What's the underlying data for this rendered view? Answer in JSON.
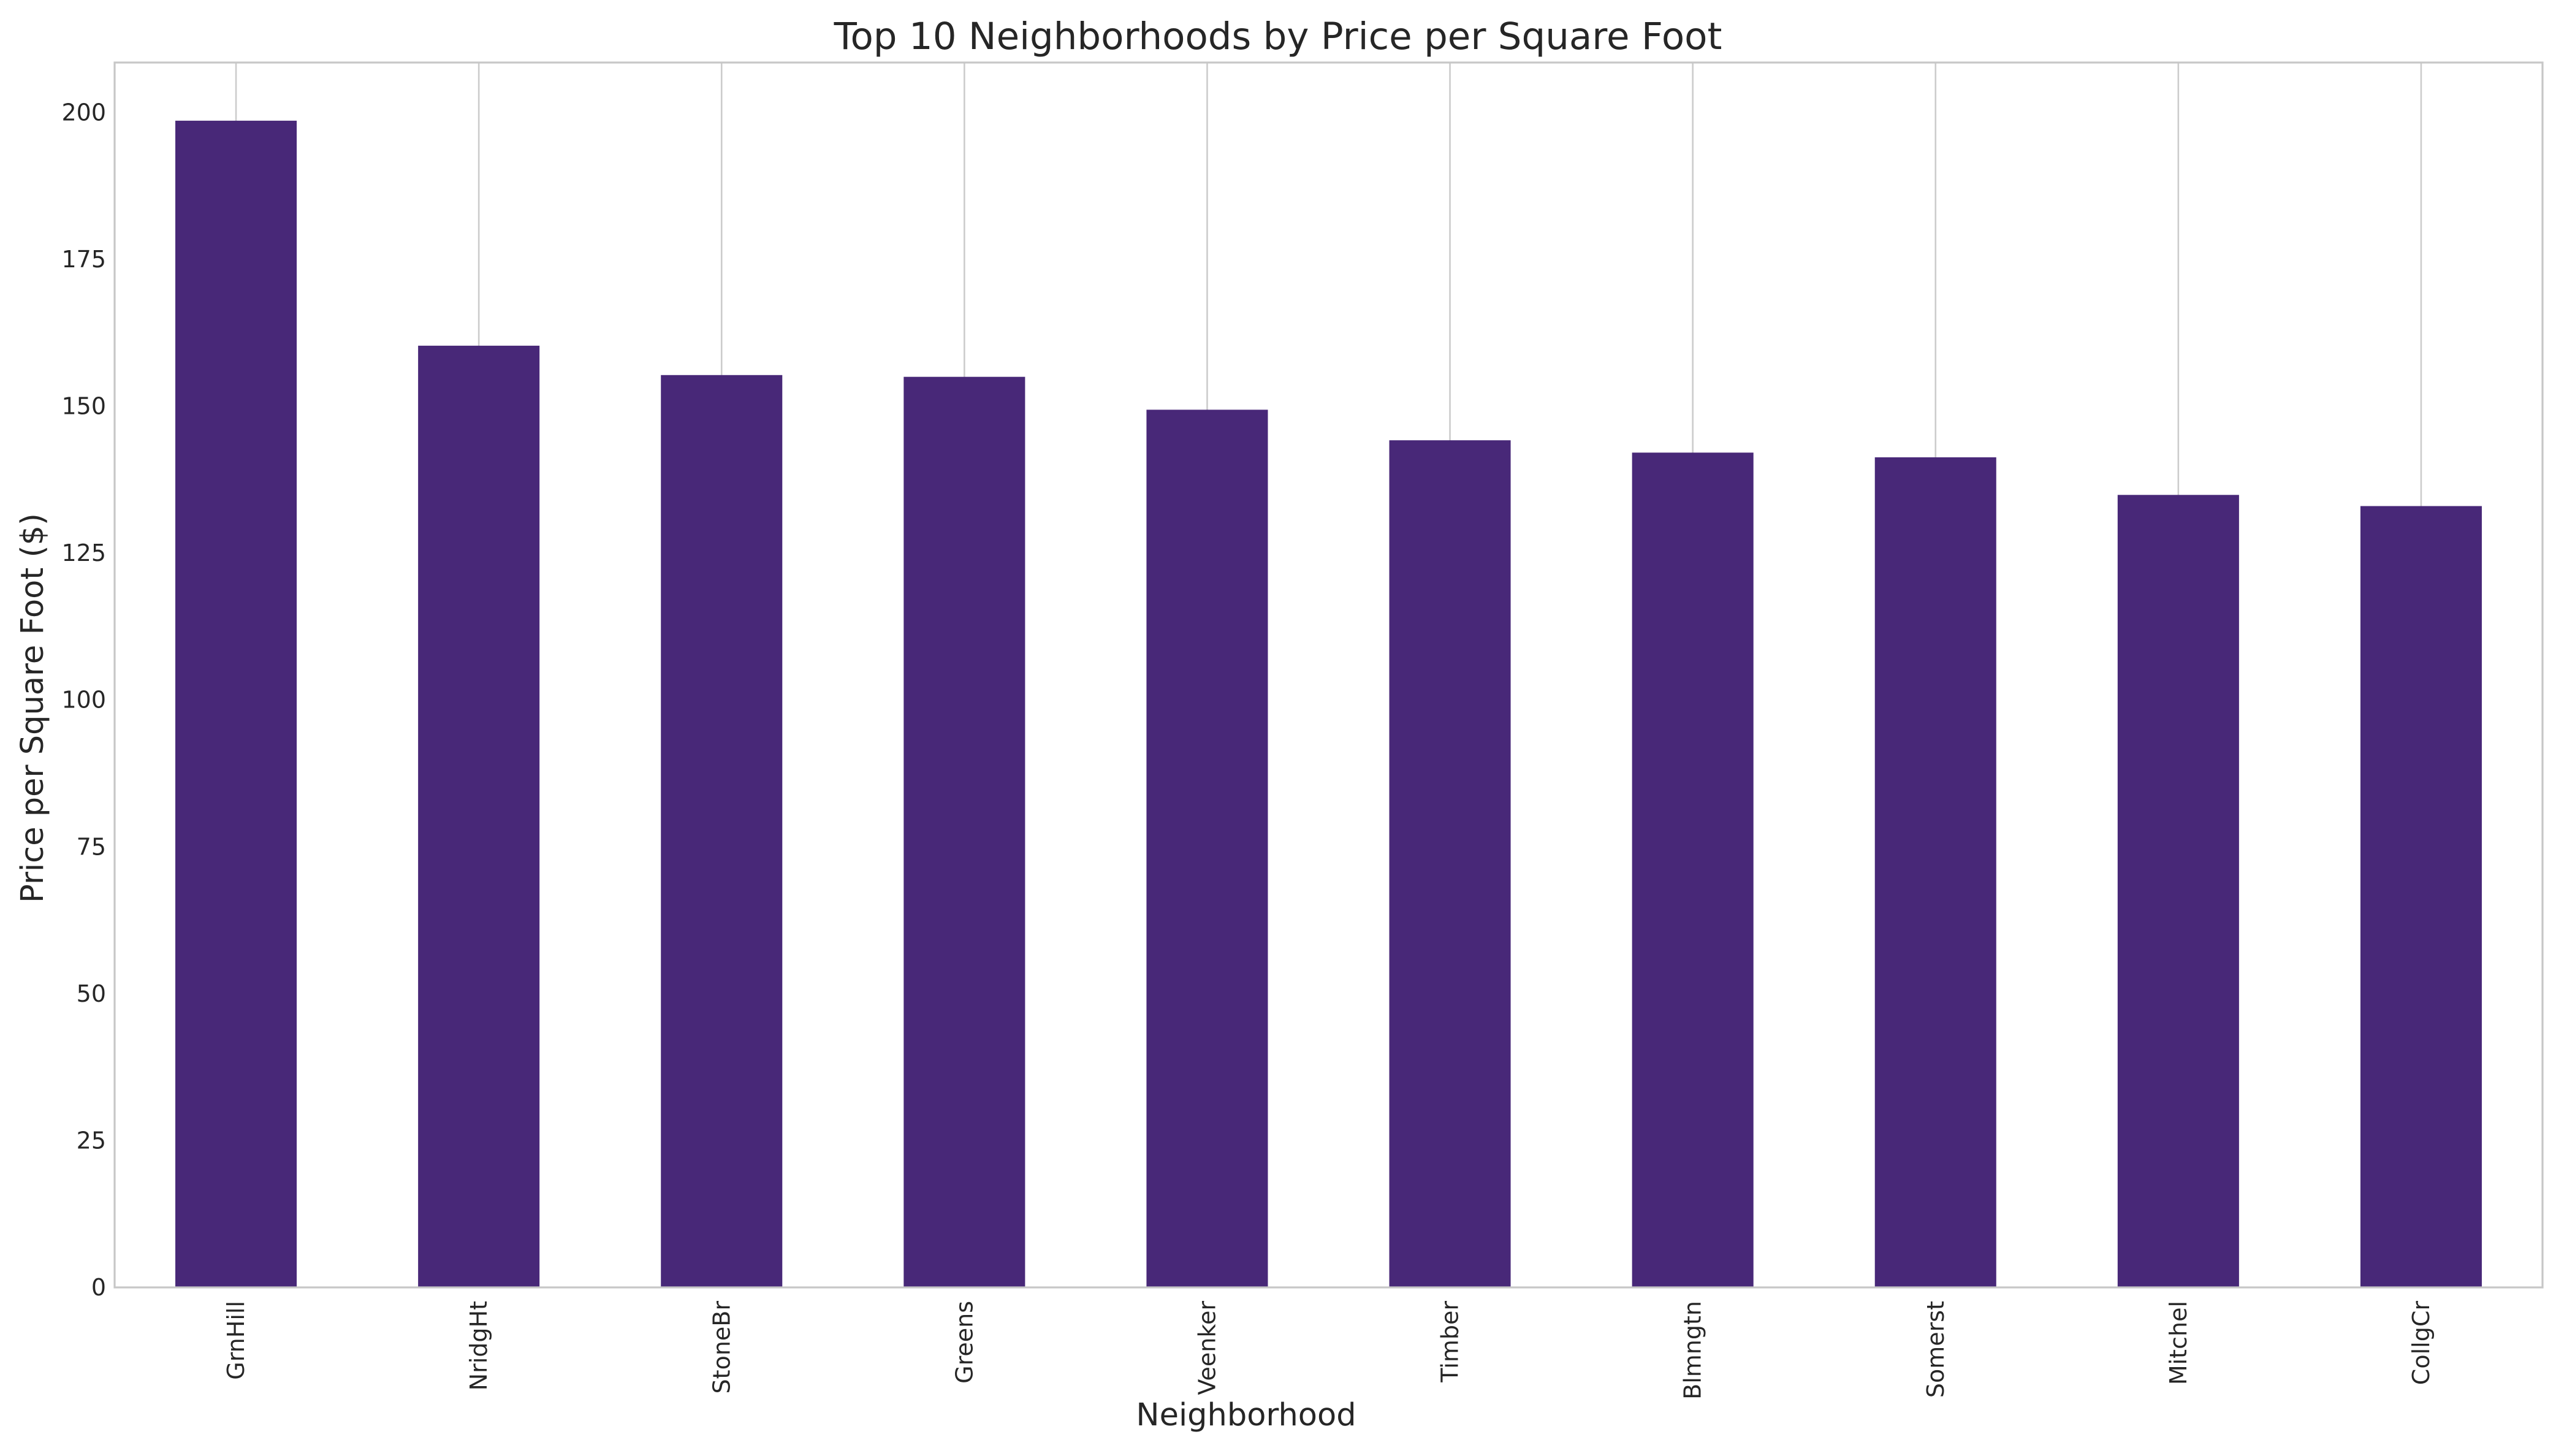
{
  "chart_data": {
    "type": "bar",
    "title": "Top 10 Neighborhoods by Price per Square Foot",
    "xlabel": "Neighborhood",
    "ylabel": "Price per Square Foot ($)",
    "categories": [
      "GrnHill",
      "NridgHt",
      "StoneBr",
      "Greens",
      "Veenker",
      "Timber",
      "Blmngtn",
      "Somerst",
      "Mitchel",
      "CollgCr"
    ],
    "values": [
      198.6,
      160.3,
      155.3,
      155.0,
      149.4,
      144.2,
      142.1,
      141.3,
      134.9,
      133.0
    ],
    "ylim": [
      0,
      208.5
    ],
    "yticks": [
      0,
      25,
      50,
      75,
      100,
      125,
      150,
      175,
      200
    ],
    "grid": "x-only",
    "bar_color": "#482878",
    "tick_label_rotation": "vertical"
  }
}
